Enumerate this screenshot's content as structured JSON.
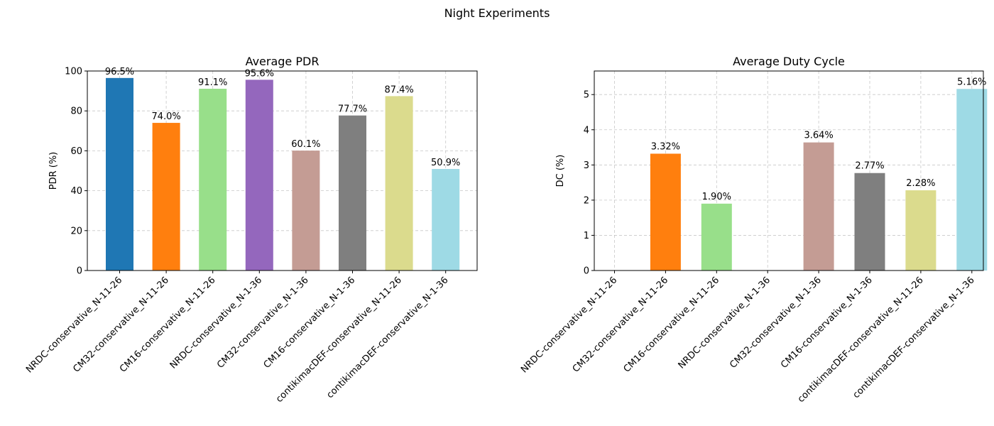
{
  "figure": {
    "suptitle": "Night Experiments"
  },
  "chart_data": [
    {
      "type": "bar",
      "title": "Average PDR",
      "xlabel": "",
      "ylabel": "PDR (%)",
      "ylim": [
        0,
        100
      ],
      "yticks": [
        0,
        20,
        40,
        60,
        80,
        100
      ],
      "grid": true,
      "categories": [
        "NRDC-conservative_N-11-26",
        "CM32-conservative_N-11-26",
        "CM16-conservative_N-11-26",
        "NRDC-conservative_N-1-36",
        "CM32-conservative_N-1-36",
        "CM16-conservative_N-1-36",
        "contikimacDEF-conservative_N-11-26",
        "contikimacDEF-conservative_N-1-36"
      ],
      "values": [
        96.5,
        74.0,
        91.1,
        95.6,
        60.1,
        77.7,
        87.4,
        50.9
      ],
      "labels": [
        "96.5%",
        "74.0%",
        "91.1%",
        "95.6%",
        "60.1%",
        "77.7%",
        "87.4%",
        "50.9%"
      ],
      "colors": [
        "#1f77b4",
        "#ff7f0e",
        "#98df8a",
        "#9467bd",
        "#c49c94",
        "#7f7f7f",
        "#dbdb8d",
        "#9edae5"
      ]
    },
    {
      "type": "bar",
      "title": "Average Duty Cycle",
      "xlabel": "",
      "ylabel": "DC (%)",
      "ylim": [
        0,
        5.67
      ],
      "yticks": [
        0,
        1,
        2,
        3,
        4,
        5
      ],
      "grid": true,
      "categories": [
        "NRDC-conservative_N-11-26",
        "CM32-conservative_N-11-26",
        "CM16-conservative_N-11-26",
        "NRDC-conservative_N-1-36",
        "CM32-conservative_N-1-36",
        "CM16-conservative_N-1-36",
        "contikimacDEF-conservative_N-11-26",
        "contikimacDEF-conservative_N-1-36"
      ],
      "values": [
        null,
        3.32,
        1.9,
        null,
        3.64,
        2.77,
        2.28,
        5.16
      ],
      "labels": [
        "",
        "3.32%",
        "1.90%",
        "",
        "3.64%",
        "2.77%",
        "2.28%",
        "5.16%"
      ],
      "colors": [
        "#1f77b4",
        "#ff7f0e",
        "#98df8a",
        "#9467bd",
        "#c49c94",
        "#7f7f7f",
        "#dbdb8d",
        "#9edae5"
      ]
    }
  ]
}
